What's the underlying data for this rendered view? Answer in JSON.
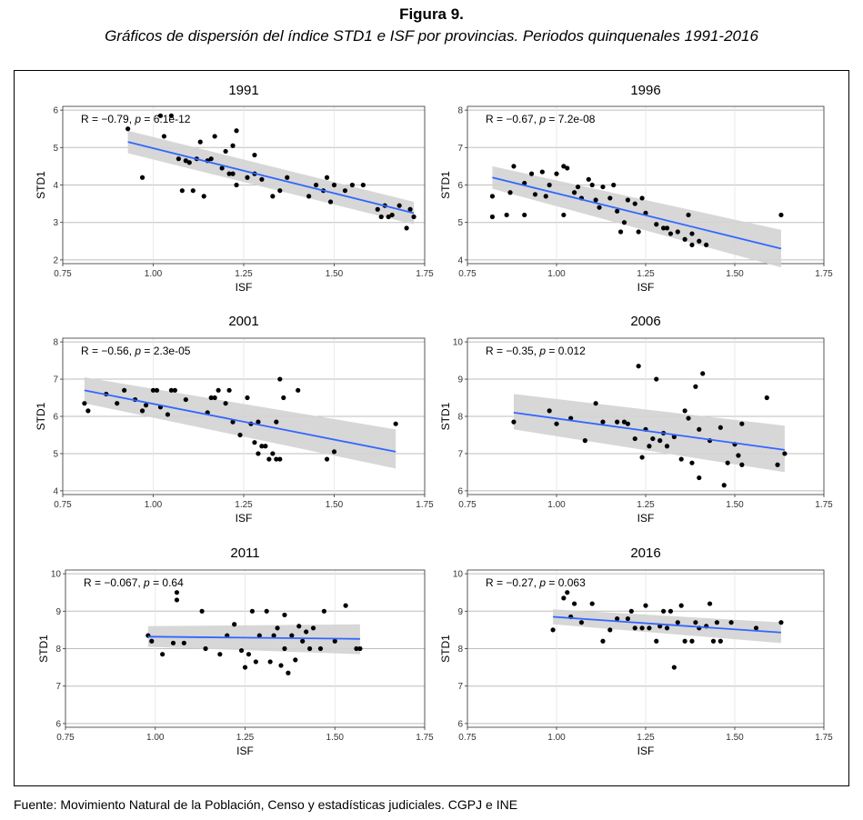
{
  "figure": {
    "title": "Figura 9.",
    "subtitle": "Gráficos de dispersión del índice STD1 e ISF por provincias. Periodos quinquenales 1991-2016",
    "source": "Fuente: Movimiento Natural de la Población, Censo y estadísticas judiciales. CGPJ e INE"
  },
  "colors": {
    "fit_line": "#3366FF",
    "ci_band": "#D3D3D3",
    "points": "#000000",
    "grid": "#BEBEBE"
  },
  "chart_data": [
    {
      "type": "scatter",
      "title": "1991",
      "xlabel": "ISF",
      "ylabel": "STD1",
      "xlim": [
        0.75,
        1.75
      ],
      "ylim": [
        1.9,
        6.1
      ],
      "xticks": [
        "0.75",
        "1.00",
        "1.25",
        "1.50",
        "1.75"
      ],
      "yticks": [
        "2",
        "3",
        "4",
        "5",
        "6"
      ],
      "annotation": {
        "r": "R = −0.79, ",
        "p_label": "p",
        "p_value": " = 6.1e-12"
      },
      "fit": {
        "x": [
          0.93,
          1.72
        ],
        "y": [
          5.15,
          3.25
        ],
        "ci_upper": [
          5.45,
          3.55
        ],
        "ci_lower": [
          4.85,
          2.95
        ]
      },
      "points": [
        [
          0.93,
          5.5
        ],
        [
          0.97,
          4.2
        ],
        [
          1.02,
          5.85
        ],
        [
          1.03,
          5.3
        ],
        [
          1.05,
          5.85
        ],
        [
          1.07,
          4.7
        ],
        [
          1.08,
          3.85
        ],
        [
          1.09,
          4.65
        ],
        [
          1.1,
          4.6
        ],
        [
          1.11,
          3.85
        ],
        [
          1.12,
          4.7
        ],
        [
          1.13,
          5.15
        ],
        [
          1.14,
          3.7
        ],
        [
          1.15,
          4.65
        ],
        [
          1.16,
          4.7
        ],
        [
          1.17,
          5.3
        ],
        [
          1.19,
          4.45
        ],
        [
          1.2,
          4.9
        ],
        [
          1.21,
          4.3
        ],
        [
          1.22,
          5.05
        ],
        [
          1.22,
          4.3
        ],
        [
          1.23,
          4.0
        ],
        [
          1.23,
          5.45
        ],
        [
          1.26,
          4.2
        ],
        [
          1.28,
          4.8
        ],
        [
          1.28,
          4.3
        ],
        [
          1.3,
          4.15
        ],
        [
          1.33,
          3.7
        ],
        [
          1.35,
          3.85
        ],
        [
          1.37,
          4.2
        ],
        [
          1.43,
          3.7
        ],
        [
          1.45,
          4.0
        ],
        [
          1.47,
          3.85
        ],
        [
          1.48,
          4.2
        ],
        [
          1.49,
          3.55
        ],
        [
          1.5,
          4.0
        ],
        [
          1.53,
          3.85
        ],
        [
          1.55,
          4.0
        ],
        [
          1.58,
          4.0
        ],
        [
          1.62,
          3.35
        ],
        [
          1.63,
          3.15
        ],
        [
          1.64,
          3.45
        ],
        [
          1.65,
          3.15
        ],
        [
          1.66,
          3.2
        ],
        [
          1.68,
          3.45
        ],
        [
          1.7,
          2.85
        ],
        [
          1.71,
          3.35
        ],
        [
          1.72,
          3.15
        ]
      ]
    },
    {
      "type": "scatter",
      "title": "1996",
      "xlabel": "ISF",
      "ylabel": "STD1",
      "xlim": [
        0.75,
        1.75
      ],
      "ylim": [
        3.9,
        8.1
      ],
      "xticks": [
        "0.75",
        "1.00",
        "1.25",
        "1.50",
        "1.75"
      ],
      "yticks": [
        "4",
        "5",
        "6",
        "7",
        "8"
      ],
      "annotation": {
        "r": "R = −0.67, ",
        "p_label": "p",
        "p_value": " = 7.2e-08"
      },
      "fit": {
        "x": [
          0.82,
          1.63
        ],
        "y": [
          6.2,
          4.3
        ],
        "ci_upper": [
          6.5,
          4.8
        ],
        "ci_lower": [
          5.9,
          3.8
        ]
      },
      "points": [
        [
          0.82,
          5.7
        ],
        [
          0.82,
          5.15
        ],
        [
          0.86,
          5.2
        ],
        [
          0.87,
          5.8
        ],
        [
          0.88,
          6.5
        ],
        [
          0.91,
          6.05
        ],
        [
          0.91,
          5.2
        ],
        [
          0.93,
          6.3
        ],
        [
          0.94,
          5.75
        ],
        [
          0.96,
          6.35
        ],
        [
          0.97,
          5.7
        ],
        [
          0.98,
          6.0
        ],
        [
          1.0,
          6.3
        ],
        [
          1.02,
          6.5
        ],
        [
          1.02,
          5.2
        ],
        [
          1.03,
          6.45
        ],
        [
          1.05,
          5.8
        ],
        [
          1.06,
          5.95
        ],
        [
          1.07,
          5.65
        ],
        [
          1.09,
          6.15
        ],
        [
          1.1,
          6.0
        ],
        [
          1.11,
          5.6
        ],
        [
          1.12,
          5.4
        ],
        [
          1.13,
          5.95
        ],
        [
          1.15,
          5.65
        ],
        [
          1.16,
          6.0
        ],
        [
          1.17,
          5.3
        ],
        [
          1.18,
          4.75
        ],
        [
          1.19,
          5.0
        ],
        [
          1.2,
          5.6
        ],
        [
          1.22,
          5.5
        ],
        [
          1.23,
          4.75
        ],
        [
          1.24,
          5.65
        ],
        [
          1.25,
          5.25
        ],
        [
          1.28,
          4.95
        ],
        [
          1.3,
          4.85
        ],
        [
          1.31,
          4.85
        ],
        [
          1.32,
          4.7
        ],
        [
          1.34,
          4.75
        ],
        [
          1.36,
          4.55
        ],
        [
          1.37,
          5.2
        ],
        [
          1.38,
          4.7
        ],
        [
          1.38,
          4.4
        ],
        [
          1.4,
          4.5
        ],
        [
          1.42,
          4.4
        ],
        [
          1.63,
          5.2
        ]
      ]
    },
    {
      "type": "scatter",
      "title": "2001",
      "xlabel": "ISF",
      "ylabel": "STD1",
      "xlim": [
        0.75,
        1.75
      ],
      "ylim": [
        3.9,
        8.1
      ],
      "xticks": [
        "0.75",
        "1.00",
        "1.25",
        "1.50",
        "1.75"
      ],
      "yticks": [
        "4",
        "5",
        "6",
        "7",
        "8"
      ],
      "annotation": {
        "r": "R = −0.56, ",
        "p_label": "p",
        "p_value": " = 2.3e-05"
      },
      "fit": {
        "x": [
          0.81,
          1.67
        ],
        "y": [
          6.7,
          5.05
        ],
        "ci_upper": [
          7.05,
          5.65
        ],
        "ci_lower": [
          6.35,
          4.6
        ]
      },
      "points": [
        [
          0.81,
          6.35
        ],
        [
          0.82,
          6.15
        ],
        [
          0.87,
          6.6
        ],
        [
          0.9,
          6.35
        ],
        [
          0.92,
          6.7
        ],
        [
          0.95,
          6.45
        ],
        [
          0.97,
          6.15
        ],
        [
          0.98,
          6.3
        ],
        [
          1.0,
          6.7
        ],
        [
          1.01,
          6.7
        ],
        [
          1.02,
          6.25
        ],
        [
          1.04,
          6.05
        ],
        [
          1.05,
          6.7
        ],
        [
          1.06,
          6.7
        ],
        [
          1.09,
          6.45
        ],
        [
          1.15,
          6.1
        ],
        [
          1.16,
          6.5
        ],
        [
          1.17,
          6.5
        ],
        [
          1.18,
          6.7
        ],
        [
          1.2,
          6.35
        ],
        [
          1.21,
          6.7
        ],
        [
          1.22,
          5.85
        ],
        [
          1.24,
          5.5
        ],
        [
          1.26,
          6.5
        ],
        [
          1.27,
          5.8
        ],
        [
          1.28,
          5.3
        ],
        [
          1.29,
          5.85
        ],
        [
          1.29,
          5.0
        ],
        [
          1.3,
          5.2
        ],
        [
          1.31,
          5.2
        ],
        [
          1.32,
          4.85
        ],
        [
          1.33,
          5.0
        ],
        [
          1.34,
          4.85
        ],
        [
          1.34,
          5.85
        ],
        [
          1.35,
          7.0
        ],
        [
          1.35,
          4.85
        ],
        [
          1.36,
          6.5
        ],
        [
          1.4,
          6.7
        ],
        [
          1.48,
          4.85
        ],
        [
          1.5,
          5.05
        ],
        [
          1.67,
          5.8
        ]
      ]
    },
    {
      "type": "scatter",
      "title": "2006",
      "xlabel": "ISF",
      "ylabel": "STD1",
      "xlim": [
        0.75,
        1.75
      ],
      "ylim": [
        5.9,
        10.1
      ],
      "xticks": [
        "0.75",
        "1.00",
        "1.25",
        "1.50",
        "1.75"
      ],
      "yticks": [
        "6",
        "7",
        "8",
        "9",
        "10"
      ],
      "annotation": {
        "r": "R = −0.35, ",
        "p_label": "p",
        "p_value": " = 0.012"
      },
      "fit": {
        "x": [
          0.88,
          1.64
        ],
        "y": [
          8.1,
          7.1
        ],
        "ci_upper": [
          8.6,
          7.75
        ],
        "ci_lower": [
          7.65,
          6.5
        ]
      },
      "points": [
        [
          0.88,
          7.85
        ],
        [
          0.98,
          8.15
        ],
        [
          1.0,
          7.8
        ],
        [
          1.04,
          7.95
        ],
        [
          1.08,
          7.35
        ],
        [
          1.11,
          8.35
        ],
        [
          1.13,
          7.85
        ],
        [
          1.17,
          7.85
        ],
        [
          1.19,
          7.85
        ],
        [
          1.2,
          7.8
        ],
        [
          1.22,
          7.4
        ],
        [
          1.23,
          9.35
        ],
        [
          1.24,
          6.9
        ],
        [
          1.25,
          7.65
        ],
        [
          1.26,
          7.2
        ],
        [
          1.27,
          7.4
        ],
        [
          1.28,
          9.0
        ],
        [
          1.29,
          7.35
        ],
        [
          1.3,
          7.55
        ],
        [
          1.31,
          7.2
        ],
        [
          1.33,
          7.45
        ],
        [
          1.35,
          6.85
        ],
        [
          1.36,
          8.15
        ],
        [
          1.37,
          7.95
        ],
        [
          1.38,
          6.75
        ],
        [
          1.39,
          8.8
        ],
        [
          1.4,
          7.65
        ],
        [
          1.4,
          6.35
        ],
        [
          1.41,
          9.15
        ],
        [
          1.43,
          7.35
        ],
        [
          1.46,
          7.7
        ],
        [
          1.47,
          6.15
        ],
        [
          1.48,
          6.75
        ],
        [
          1.5,
          7.25
        ],
        [
          1.51,
          6.95
        ],
        [
          1.52,
          6.7
        ],
        [
          1.52,
          7.8
        ],
        [
          1.59,
          8.5
        ],
        [
          1.62,
          6.7
        ],
        [
          1.64,
          7.0
        ]
      ]
    },
    {
      "type": "scatter",
      "title": "2011",
      "xlabel": "ISF",
      "ylabel": "STD1",
      "xlim": [
        0.75,
        1.75
      ],
      "ylim": [
        5.9,
        10.1
      ],
      "xticks": [
        "0.75",
        "1.00",
        "1.25",
        "1.50",
        "1.75"
      ],
      "yticks": [
        "6",
        "7",
        "8",
        "9",
        "10"
      ],
      "annotation": {
        "r": "R = −0.067, ",
        "p_label": "p",
        "p_value": " = 0.64"
      },
      "fit": {
        "x": [
          0.98,
          1.57
        ],
        "y": [
          8.32,
          8.26
        ],
        "ci_upper": [
          8.6,
          8.65
        ],
        "ci_lower": [
          8.05,
          7.85
        ]
      },
      "points": [
        [
          0.98,
          8.35
        ],
        [
          0.99,
          8.2
        ],
        [
          1.02,
          7.85
        ],
        [
          1.05,
          8.15
        ],
        [
          1.06,
          9.3
        ],
        [
          1.06,
          9.5
        ],
        [
          1.08,
          8.15
        ],
        [
          1.13,
          9.0
        ],
        [
          1.14,
          8.0
        ],
        [
          1.18,
          7.85
        ],
        [
          1.2,
          8.35
        ],
        [
          1.22,
          8.65
        ],
        [
          1.24,
          7.95
        ],
        [
          1.25,
          7.5
        ],
        [
          1.26,
          7.85
        ],
        [
          1.27,
          9.0
        ],
        [
          1.28,
          7.65
        ],
        [
          1.29,
          8.35
        ],
        [
          1.31,
          9.0
        ],
        [
          1.32,
          7.65
        ],
        [
          1.33,
          8.35
        ],
        [
          1.34,
          8.55
        ],
        [
          1.35,
          7.55
        ],
        [
          1.36,
          8.9
        ],
        [
          1.36,
          8.0
        ],
        [
          1.37,
          7.35
        ],
        [
          1.38,
          8.35
        ],
        [
          1.39,
          7.7
        ],
        [
          1.4,
          8.6
        ],
        [
          1.41,
          8.2
        ],
        [
          1.42,
          8.45
        ],
        [
          1.43,
          8.0
        ],
        [
          1.44,
          8.55
        ],
        [
          1.46,
          8.0
        ],
        [
          1.47,
          9.0
        ],
        [
          1.5,
          8.2
        ],
        [
          1.53,
          9.15
        ],
        [
          1.56,
          8.0
        ],
        [
          1.57,
          8.0
        ]
      ]
    },
    {
      "type": "scatter",
      "title": "2016",
      "xlabel": "ISF",
      "ylabel": "STD1",
      "xlim": [
        0.75,
        1.75
      ],
      "ylim": [
        5.9,
        10.1
      ],
      "xticks": [
        "0.75",
        "1.00",
        "1.25",
        "1.50",
        "1.75"
      ],
      "yticks": [
        "6",
        "7",
        "8",
        "9",
        "10"
      ],
      "annotation": {
        "r": "R = −0.27, ",
        "p_label": "p",
        "p_value": " = 0.063"
      },
      "fit": {
        "x": [
          0.99,
          1.63
        ],
        "y": [
          8.85,
          8.43
        ],
        "ci_upper": [
          9.05,
          8.7
        ],
        "ci_lower": [
          8.65,
          8.15
        ]
      },
      "points": [
        [
          0.99,
          8.5
        ],
        [
          1.02,
          9.35
        ],
        [
          1.03,
          9.5
        ],
        [
          1.04,
          8.85
        ],
        [
          1.05,
          9.2
        ],
        [
          1.07,
          8.7
        ],
        [
          1.1,
          9.2
        ],
        [
          1.13,
          8.2
        ],
        [
          1.15,
          8.5
        ],
        [
          1.17,
          8.8
        ],
        [
          1.2,
          8.8
        ],
        [
          1.21,
          9.0
        ],
        [
          1.22,
          8.55
        ],
        [
          1.24,
          8.55
        ],
        [
          1.25,
          9.15
        ],
        [
          1.26,
          8.55
        ],
        [
          1.28,
          8.2
        ],
        [
          1.29,
          8.6
        ],
        [
          1.3,
          9.0
        ],
        [
          1.31,
          8.55
        ],
        [
          1.32,
          9.0
        ],
        [
          1.33,
          7.5
        ],
        [
          1.34,
          8.7
        ],
        [
          1.35,
          9.15
        ],
        [
          1.36,
          8.2
        ],
        [
          1.38,
          8.2
        ],
        [
          1.39,
          8.7
        ],
        [
          1.4,
          8.55
        ],
        [
          1.42,
          8.6
        ],
        [
          1.43,
          9.2
        ],
        [
          1.44,
          8.2
        ],
        [
          1.45,
          8.7
        ],
        [
          1.46,
          8.2
        ],
        [
          1.49,
          8.7
        ],
        [
          1.56,
          8.55
        ],
        [
          1.63,
          8.7
        ]
      ]
    }
  ]
}
